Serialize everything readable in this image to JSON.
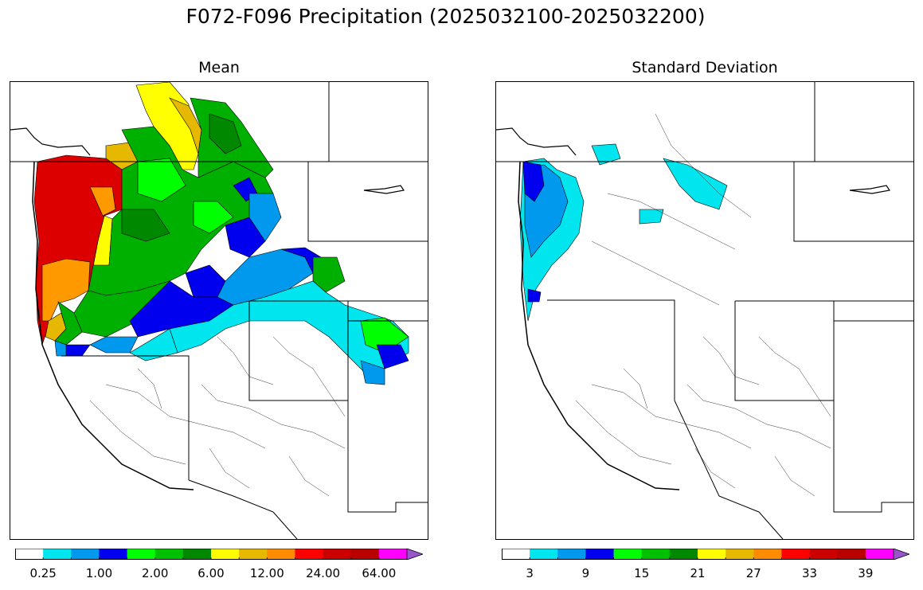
{
  "title": "F072-F096 Precipitation (2025032100-2025032200)",
  "panels": [
    {
      "id": "mean",
      "title": "Mean",
      "colorbar": {
        "colors": [
          "#ffffff",
          "#00e5ee",
          "#0099ee",
          "#0000ee",
          "#00ff00",
          "#00c000",
          "#008800",
          "#ffff00",
          "#e6b800",
          "#ff8c00",
          "#ff0000",
          "#cc0000",
          "#b80000",
          "#ff00ff",
          "#9955cc"
        ],
        "tick_labels": [
          "0.25",
          "1.00",
          "2.00",
          "6.00",
          "12.00",
          "24.00",
          "64.00"
        ],
        "extend": "max"
      }
    },
    {
      "id": "std",
      "title": "Standard Deviation",
      "colorbar": {
        "colors": [
          "#ffffff",
          "#00e5ee",
          "#0099ee",
          "#0000ee",
          "#00ff00",
          "#00c000",
          "#008800",
          "#ffff00",
          "#e6b800",
          "#ff8c00",
          "#ff0000",
          "#cc0000",
          "#b80000",
          "#ff00ff",
          "#9955cc"
        ],
        "tick_labels": [
          "3",
          "9",
          "15",
          "21",
          "27",
          "33",
          "39"
        ],
        "extend": "max"
      }
    }
  ],
  "map_legend_colors": {
    "red": "#dd0000",
    "dark_red": "#b00000",
    "orange": "#ff9900",
    "gold": "#e6b800",
    "yellow": "#ffff00",
    "green": "#00b000",
    "dark_green": "#008800",
    "light_green": "#00ff00",
    "blue": "#0000ee",
    "mid_blue": "#0099ee",
    "cyan": "#00e5ee"
  }
}
